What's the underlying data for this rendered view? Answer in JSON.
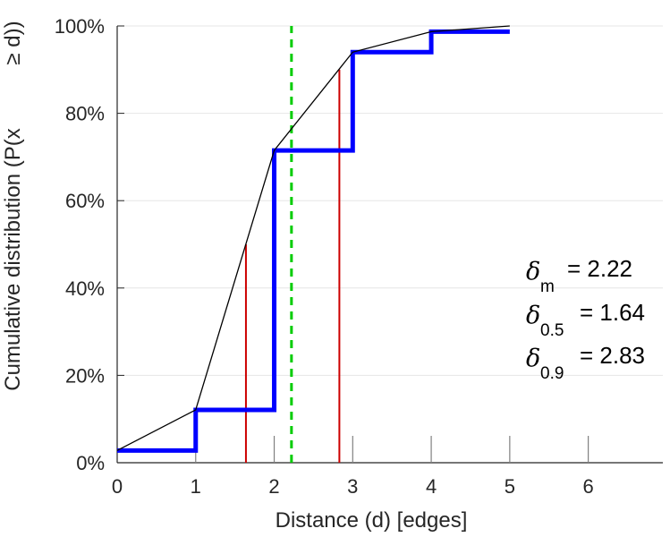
{
  "chart_data": {
    "type": "line",
    "xlabel": "Distance (d) [edges]",
    "ylabel": "Cumulative distribution (P(x ≥ d))",
    "ylabel_parts": [
      "Cumulative distribution (P(x",
      "≥ d))"
    ],
    "xlim": [
      0,
      6.95
    ],
    "ylim": [
      0,
      100
    ],
    "x_ticks": [
      "0",
      "1",
      "2",
      "3",
      "4",
      "5",
      "6"
    ],
    "y_ticks": [
      "0%",
      "20%",
      "40%",
      "60%",
      "80%",
      "100%"
    ],
    "y_tick_values": [
      0,
      20,
      40,
      60,
      80,
      100
    ],
    "grid": "horizontal",
    "series": [
      {
        "style": "step",
        "color": "#0000ff",
        "x": [
          0,
          1,
          2,
          3,
          4,
          5
        ],
        "y": [
          2.8,
          12.1,
          71.5,
          94.0,
          98.7,
          98.7
        ]
      },
      {
        "style": "line",
        "color": "#000000",
        "x": [
          0,
          1,
          2,
          3,
          4,
          5
        ],
        "y": [
          2.8,
          12.1,
          71.5,
          94.0,
          98.7,
          100
        ]
      }
    ],
    "vertical_markers": [
      {
        "x": 1.64,
        "y_top": 50,
        "color": "#cc0000",
        "style": "solid"
      },
      {
        "x": 2.83,
        "y_top": 90,
        "color": "#cc0000",
        "style": "solid"
      },
      {
        "x": 2.22,
        "y_top": 100,
        "color": "#00cc00",
        "style": "dashed"
      }
    ],
    "annotations": [
      {
        "symbol": "δ",
        "sub": "m",
        "text": "= 2.22"
      },
      {
        "symbol": "δ",
        "sub": "0.5",
        "text": "= 1.64"
      },
      {
        "symbol": "δ",
        "sub": "0.9",
        "text": "= 2.83"
      }
    ]
  },
  "colors": {
    "grid": "#e6e6e6",
    "axis": "#262626",
    "step": "#0000ff",
    "ecdf": "#000000",
    "quantile": "#cc0000",
    "mean": "#00cc00"
  }
}
